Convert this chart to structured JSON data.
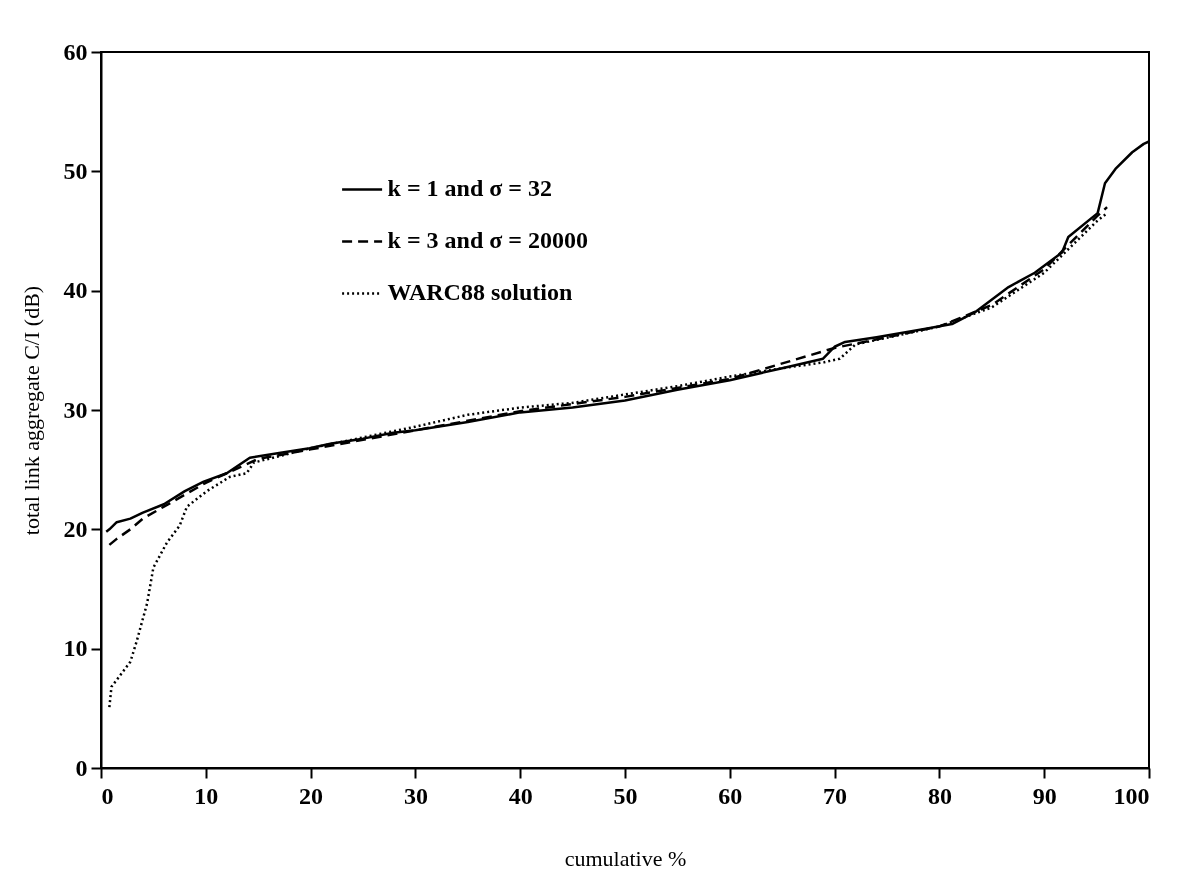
{
  "chart_data": {
    "type": "line",
    "xlabel": "cumulative %",
    "ylabel": "total link aggregate C/I (dB)",
    "xlim": [
      0,
      100
    ],
    "ylim": [
      0,
      60
    ],
    "xticks": [
      0,
      10,
      20,
      30,
      40,
      50,
      60,
      70,
      80,
      90,
      100
    ],
    "yticks": [
      0,
      10,
      20,
      30,
      40,
      50,
      60
    ],
    "grid": false,
    "legend": "top left",
    "marker": "none",
    "series": [
      {
        "name": "k = 1 and σ = 32",
        "color": "#000000",
        "line_style": "solid",
        "x": [
          0.5,
          0.8,
          1.5,
          2.8,
          4,
          6,
          8,
          9.8,
          12,
          14.2,
          17,
          19.9,
          22,
          25,
          27.9,
          30,
          35,
          40,
          45,
          50,
          55,
          60,
          65,
          68.9,
          70,
          71,
          74,
          78.7,
          81.2,
          83.4,
          86.6,
          89.1,
          91.7,
          92.3,
          95.1,
          95.8,
          96.8,
          98.4,
          99.5,
          100
        ],
        "values": [
          19.8,
          20.0,
          20.6,
          20.9,
          21.4,
          22.1,
          23.2,
          24.0,
          24.7,
          26.0,
          26.4,
          26.8,
          27.2,
          27.6,
          28.1,
          28.3,
          29.0,
          29.8,
          30.2,
          30.8,
          31.7,
          32.5,
          33.5,
          34.3,
          35.3,
          35.7,
          36.1,
          36.8,
          37.2,
          38.2,
          40.3,
          41.5,
          43.2,
          44.5,
          46.5,
          49.0,
          50.2,
          51.6,
          52.3,
          52.5
        ]
      },
      {
        "name": "k = 3 and σ = 20000",
        "color": "#000000",
        "line_style": "dashed",
        "x": [
          0.8,
          1.5,
          2.8,
          4,
          6,
          10,
          15,
          20,
          30,
          40,
          50,
          60,
          70,
          80,
          85,
          90,
          95,
          96
        ],
        "values": [
          18.7,
          19.2,
          20.0,
          20.9,
          21.9,
          23.9,
          25.9,
          26.7,
          28.3,
          29.9,
          31.1,
          32.6,
          35.2,
          37.0,
          38.8,
          41.8,
          46.2,
          47.0
        ]
      },
      {
        "name": "WARC88 solution",
        "color": "#000000",
        "line_style": "dotted",
        "x": [
          0.8,
          1.0,
          2.8,
          3.4,
          4.4,
          5,
          6.3,
          7.5,
          8.2,
          10.1,
          12.3,
          13.9,
          14.6,
          20,
          30,
          35,
          40,
          45,
          50,
          55,
          60,
          65,
          69,
          70.5,
          72,
          80,
          85,
          90,
          95,
          96
        ],
        "values": [
          5.1,
          6.8,
          8.9,
          10.6,
          13.8,
          16.8,
          18.9,
          20.3,
          21.9,
          23.2,
          24.4,
          24.7,
          25.6,
          26.8,
          28.6,
          29.6,
          30.2,
          30.6,
          31.3,
          32.0,
          32.8,
          33.5,
          34.0,
          34.3,
          35.5,
          37.0,
          38.6,
          41.5,
          45.8,
          46.5
        ]
      }
    ]
  }
}
